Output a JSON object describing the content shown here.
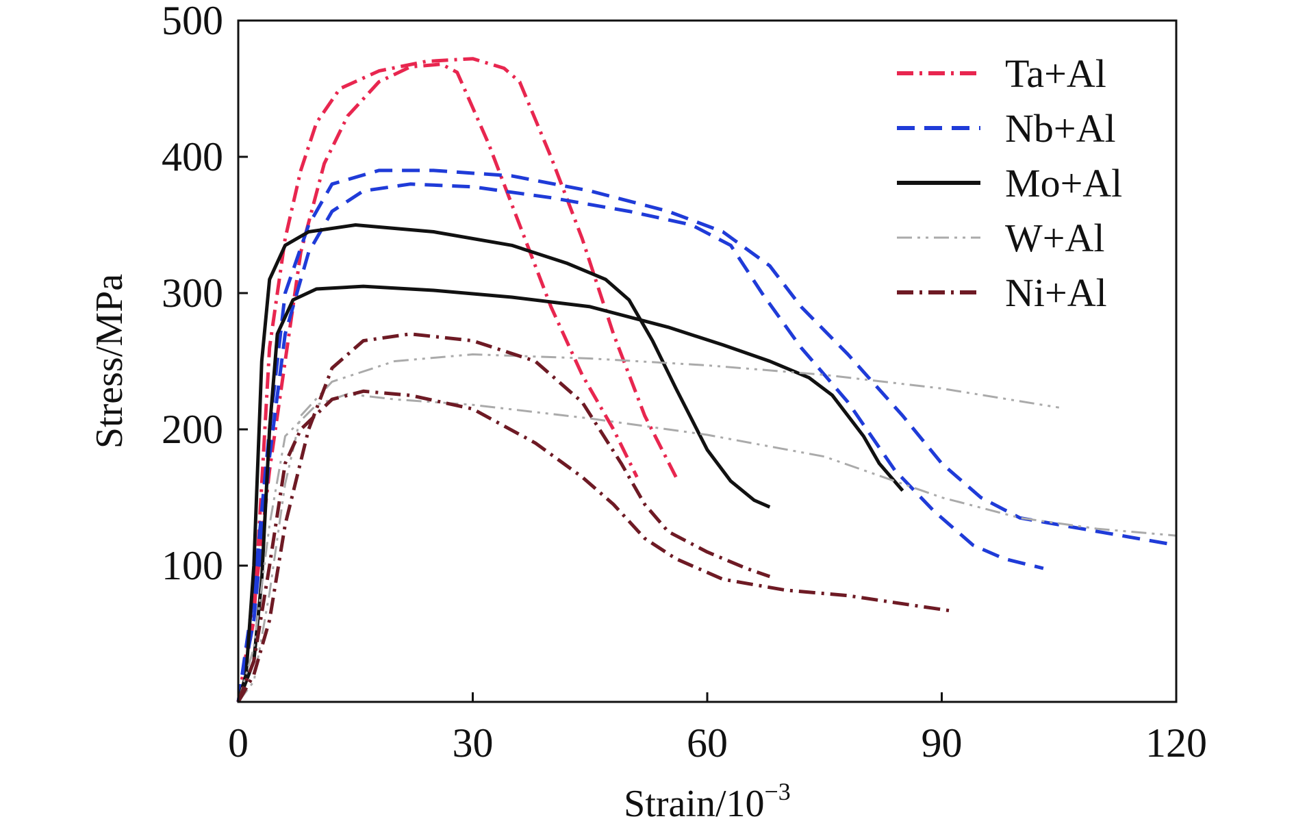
{
  "chart_data": {
    "type": "line",
    "title": "",
    "xlabel": "Strain/10",
    "xlabel_sup": "−3",
    "ylabel": "Stress/MPa",
    "xlim": [
      0,
      120
    ],
    "ylim": [
      0,
      500
    ],
    "xticks": [
      0,
      30,
      60,
      90,
      120
    ],
    "yticks": [
      100,
      200,
      300,
      400,
      500
    ],
    "xtick_labels": [
      "0",
      "30",
      "60",
      "90",
      "120"
    ],
    "ytick_labels": [
      "100",
      "200",
      "300",
      "400",
      "500"
    ],
    "grid": false,
    "legend_position": "top-right",
    "legend": [
      {
        "label": "Ta+Al",
        "color": "#e8264f",
        "dash": "dash-dot"
      },
      {
        "label": "Nb+Al",
        "color": "#1f3bd8",
        "dash": "dashed"
      },
      {
        "label": "Mo+Al",
        "color": "#111111",
        "dash": "solid"
      },
      {
        "label": "W+Al",
        "color": "#aaaaaa",
        "dash": "dash-dot-dot"
      },
      {
        "label": "Ni+Al",
        "color": "#6e1a24",
        "dash": "dash-dot"
      }
    ],
    "series": [
      {
        "name": "Ta+Al",
        "color": "#e8264f",
        "dash": "dash-dot",
        "points": [
          [
            0,
            0
          ],
          [
            2,
            60
          ],
          [
            3,
            160
          ],
          [
            4,
            260
          ],
          [
            6,
            340
          ],
          [
            8,
            390
          ],
          [
            10,
            425
          ],
          [
            13,
            450
          ],
          [
            18,
            463
          ],
          [
            24,
            470
          ],
          [
            30,
            472
          ],
          [
            34,
            465
          ],
          [
            36,
            455
          ],
          [
            40,
            400
          ],
          [
            44,
            340
          ],
          [
            48,
            270
          ],
          [
            52,
            210
          ],
          [
            56,
            165
          ]
        ]
      },
      {
        "name": "Ta+Al",
        "color": "#e8264f",
        "dash": "dash-dot",
        "points": [
          [
            0,
            0
          ],
          [
            2,
            70
          ],
          [
            3,
            120
          ],
          [
            4,
            170
          ],
          [
            6,
            250
          ],
          [
            8,
            330
          ],
          [
            11,
            395
          ],
          [
            14,
            430
          ],
          [
            18,
            455
          ],
          [
            22,
            466
          ],
          [
            26,
            468
          ],
          [
            28,
            462
          ],
          [
            32,
            410
          ],
          [
            36,
            350
          ],
          [
            40,
            290
          ],
          [
            44,
            240
          ],
          [
            48,
            200
          ],
          [
            51,
            165
          ]
        ]
      },
      {
        "name": "Nb+Al",
        "color": "#1f3bd8",
        "dash": "dashed",
        "points": [
          [
            0,
            0
          ],
          [
            2,
            80
          ],
          [
            4,
            200
          ],
          [
            6,
            300
          ],
          [
            9,
            350
          ],
          [
            12,
            380
          ],
          [
            18,
            390
          ],
          [
            25,
            390
          ],
          [
            35,
            386
          ],
          [
            45,
            375
          ],
          [
            55,
            360
          ],
          [
            62,
            345
          ],
          [
            68,
            320
          ],
          [
            72,
            290
          ],
          [
            78,
            255
          ],
          [
            85,
            210
          ],
          [
            90,
            175
          ],
          [
            95,
            150
          ],
          [
            100,
            135
          ],
          [
            110,
            125
          ],
          [
            120,
            115
          ]
        ]
      },
      {
        "name": "Nb+Al",
        "color": "#1f3bd8",
        "dash": "dashed",
        "points": [
          [
            0,
            0
          ],
          [
            2,
            60
          ],
          [
            4,
            180
          ],
          [
            6,
            270
          ],
          [
            9,
            330
          ],
          [
            12,
            360
          ],
          [
            16,
            375
          ],
          [
            22,
            380
          ],
          [
            30,
            378
          ],
          [
            40,
            370
          ],
          [
            50,
            360
          ],
          [
            58,
            350
          ],
          [
            63,
            335
          ],
          [
            67,
            300
          ],
          [
            72,
            260
          ],
          [
            78,
            220
          ],
          [
            84,
            170
          ],
          [
            89,
            140
          ],
          [
            94,
            115
          ],
          [
            98,
            105
          ],
          [
            103,
            98
          ]
        ]
      },
      {
        "name": "Mo+Al",
        "color": "#111111",
        "dash": "solid",
        "points": [
          [
            0,
            0
          ],
          [
            1,
            20
          ],
          [
            2,
            100
          ],
          [
            3,
            250
          ],
          [
            4,
            310
          ],
          [
            6,
            335
          ],
          [
            9,
            345
          ],
          [
            15,
            350
          ],
          [
            25,
            345
          ],
          [
            35,
            335
          ],
          [
            42,
            322
          ],
          [
            47,
            310
          ],
          [
            50,
            295
          ],
          [
            53,
            265
          ],
          [
            56,
            230
          ],
          [
            60,
            185
          ],
          [
            63,
            162
          ],
          [
            66,
            148
          ],
          [
            68,
            143
          ]
        ]
      },
      {
        "name": "Mo+Al",
        "color": "#111111",
        "dash": "solid",
        "points": [
          [
            0,
            0
          ],
          [
            2,
            30
          ],
          [
            3,
            90
          ],
          [
            4,
            200
          ],
          [
            5,
            270
          ],
          [
            7,
            295
          ],
          [
            10,
            303
          ],
          [
            16,
            305
          ],
          [
            25,
            302
          ],
          [
            35,
            297
          ],
          [
            45,
            290
          ],
          [
            55,
            275
          ],
          [
            62,
            262
          ],
          [
            68,
            250
          ],
          [
            73,
            238
          ],
          [
            76,
            225
          ],
          [
            78,
            210
          ],
          [
            80,
            195
          ],
          [
            82,
            175
          ],
          [
            85,
            155
          ]
        ]
      },
      {
        "name": "W+Al",
        "color": "#aaaaaa",
        "dash": "dash-dot-dot",
        "points": [
          [
            0,
            0
          ],
          [
            2,
            15
          ],
          [
            4,
            80
          ],
          [
            6,
            160
          ],
          [
            8,
            210
          ],
          [
            12,
            235
          ],
          [
            20,
            250
          ],
          [
            30,
            255
          ],
          [
            45,
            252
          ],
          [
            60,
            247
          ],
          [
            75,
            240
          ],
          [
            90,
            230
          ],
          [
            105,
            216
          ]
        ]
      },
      {
        "name": "W+Al",
        "color": "#aaaaaa",
        "dash": "dash-dot-dot",
        "points": [
          [
            0,
            0
          ],
          [
            2,
            40
          ],
          [
            4,
            130
          ],
          [
            6,
            195
          ],
          [
            10,
            218
          ],
          [
            14,
            226
          ],
          [
            20,
            222
          ],
          [
            30,
            218
          ],
          [
            45,
            208
          ],
          [
            60,
            196
          ],
          [
            75,
            180
          ],
          [
            90,
            150
          ],
          [
            100,
            135
          ],
          [
            110,
            127
          ],
          [
            120,
            122
          ]
        ]
      },
      {
        "name": "Ni+Al",
        "color": "#6e1a24",
        "dash": "dash-dot",
        "points": [
          [
            0,
            0
          ],
          [
            2,
            20
          ],
          [
            4,
            60
          ],
          [
            6,
            130
          ],
          [
            9,
            200
          ],
          [
            12,
            245
          ],
          [
            16,
            265
          ],
          [
            22,
            270
          ],
          [
            30,
            265
          ],
          [
            38,
            250
          ],
          [
            44,
            220
          ],
          [
            49,
            175
          ],
          [
            52,
            145
          ],
          [
            55,
            125
          ],
          [
            60,
            110
          ],
          [
            65,
            98
          ],
          [
            68,
            92
          ]
        ]
      },
      {
        "name": "Ni+Al",
        "color": "#6e1a24",
        "dash": "dash-dot",
        "points": [
          [
            0,
            0
          ],
          [
            2,
            30
          ],
          [
            4,
            100
          ],
          [
            6,
            175
          ],
          [
            8,
            200
          ],
          [
            12,
            222
          ],
          [
            16,
            228
          ],
          [
            22,
            225
          ],
          [
            30,
            215
          ],
          [
            38,
            190
          ],
          [
            44,
            165
          ],
          [
            48,
            145
          ],
          [
            52,
            120
          ],
          [
            56,
            105
          ],
          [
            62,
            90
          ],
          [
            70,
            82
          ],
          [
            78,
            78
          ],
          [
            85,
            72
          ],
          [
            91,
            67
          ]
        ]
      }
    ]
  }
}
